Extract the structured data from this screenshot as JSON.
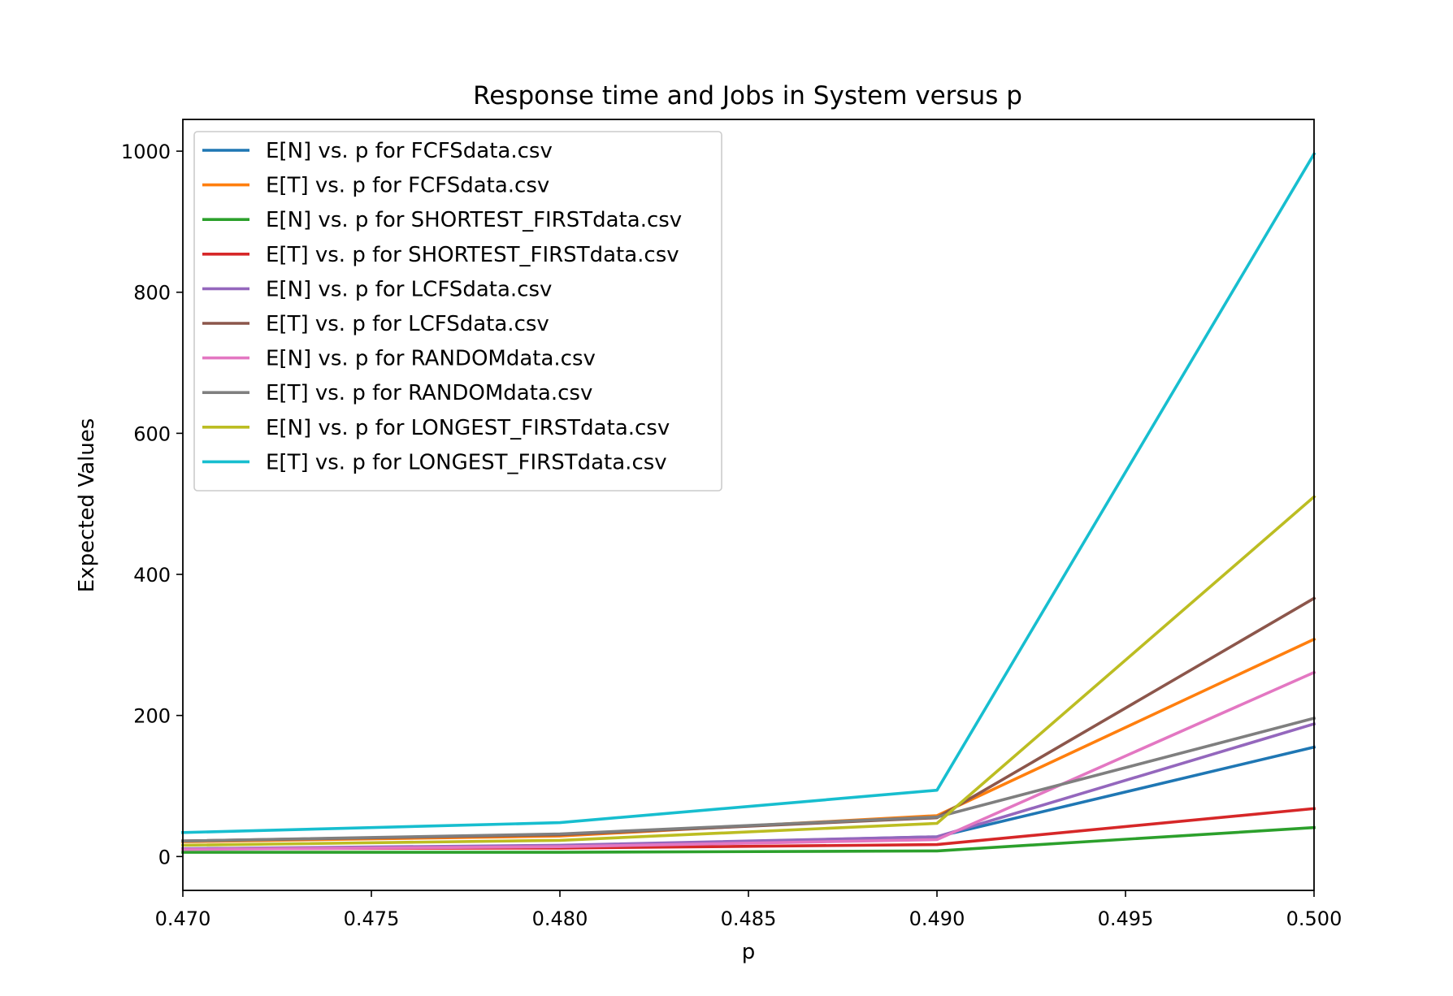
{
  "chart_data": {
    "type": "line",
    "title": "Response time and Jobs in System versus p",
    "xlabel": "p",
    "ylabel": "Expected Values",
    "xlim": [
      0.47,
      0.5
    ],
    "ylim": [
      -48,
      1045
    ],
    "xticks": [
      0.47,
      0.475,
      0.48,
      0.485,
      0.49,
      0.495,
      0.5
    ],
    "xtick_labels": [
      "0.470",
      "0.475",
      "0.480",
      "0.485",
      "0.490",
      "0.495",
      "0.500"
    ],
    "yticks": [
      0,
      200,
      400,
      600,
      800,
      1000
    ],
    "ytick_labels": [
      "0",
      "200",
      "400",
      "600",
      "800",
      "1000"
    ],
    "grid": false,
    "legend_position": "upper-left",
    "x": [
      0.47,
      0.48,
      0.49,
      0.5
    ],
    "series": [
      {
        "name": "E[N] vs. p for FCFSdata.csv",
        "color": "#1f77b4",
        "values": [
          11,
          15,
          28,
          155
        ]
      },
      {
        "name": "E[T] vs. p for FCFSdata.csv",
        "color": "#ff7f0e",
        "values": [
          21,
          29,
          58,
          308
        ]
      },
      {
        "name": "E[N] vs. p for SHORTEST_FIRSTdata.csv",
        "color": "#2ca02c",
        "values": [
          6,
          6,
          8,
          41
        ]
      },
      {
        "name": "E[T] vs. p for SHORTEST_FIRSTdata.csv",
        "color": "#d62728",
        "values": [
          11,
          12,
          17,
          68
        ]
      },
      {
        "name": "E[N] vs. p for LCFSdata.csv",
        "color": "#9467bd",
        "values": [
          11,
          16,
          28,
          188
        ]
      },
      {
        "name": "E[T] vs. p for LCFSdata.csv",
        "color": "#8c564b",
        "values": [
          22,
          31,
          55,
          366
        ]
      },
      {
        "name": "E[N] vs. p for RANDOMdata.csv",
        "color": "#e377c2",
        "values": [
          10,
          14,
          24,
          261
        ]
      },
      {
        "name": "E[T] vs. p for RANDOMdata.csv",
        "color": "#7f7f7f",
        "values": [
          22,
          32,
          56,
          196
        ]
      },
      {
        "name": "E[N] vs. p for LONGEST_FIRSTdata.csv",
        "color": "#bcbd22",
        "values": [
          16,
          23,
          47,
          510
        ]
      },
      {
        "name": "E[T] vs. p for LONGEST_FIRSTdata.csv",
        "color": "#17becf",
        "values": [
          34,
          48,
          94,
          996
        ]
      }
    ]
  }
}
